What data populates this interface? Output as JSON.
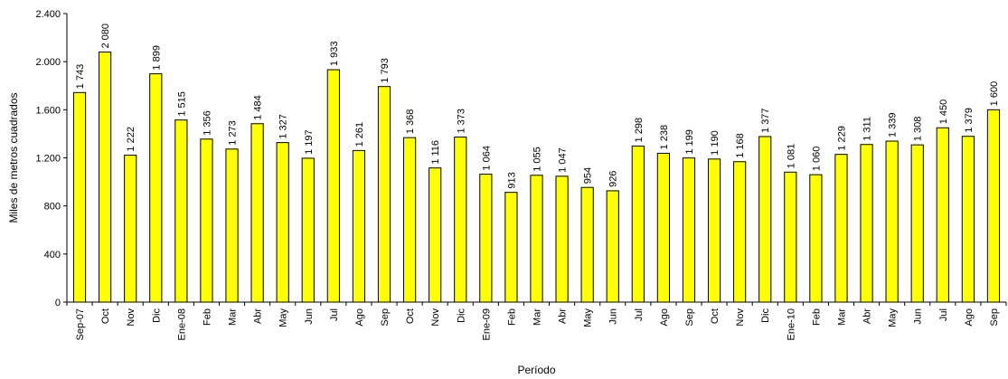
{
  "chart_data": {
    "type": "bar",
    "title": "",
    "xlabel": "Período",
    "ylabel": "Miles de metros cuadrados",
    "ylim": [
      0,
      2400
    ],
    "yticks": [
      0,
      400,
      800,
      1200,
      1600,
      2000,
      2400
    ],
    "ytick_labels": [
      "0",
      "400",
      "800",
      "1.200",
      "1.600",
      "2.000",
      "2.400"
    ],
    "grid": false,
    "legend": "none",
    "bar_color": "#ffff00",
    "bar_edge_color": "#000000",
    "categories": [
      "Sep-07",
      "Oct",
      "Nov",
      "Dic",
      "Ene-08",
      "Feb",
      "Mar",
      "Abr",
      "May",
      "Jun",
      "Jul",
      "Ago",
      "Sep",
      "Oct",
      "Nov",
      "Dic",
      "Ene-09",
      "Feb",
      "Mar",
      "Abr",
      "May",
      "Jun",
      "Jul",
      "Ago",
      "Sep",
      "Oct",
      "Nov",
      "Dic",
      "Ene-10",
      "Feb",
      "Mar",
      "Abr",
      "May",
      "Jun",
      "Jul",
      "Ago",
      "Sep"
    ],
    "values": [
      1743,
      2080,
      1222,
      1899,
      1515,
      1356,
      1273,
      1484,
      1327,
      1197,
      1933,
      1261,
      1793,
      1368,
      1116,
      1373,
      1064,
      913,
      1055,
      1047,
      954,
      926,
      1298,
      1238,
      1199,
      1190,
      1168,
      1377,
      1081,
      1060,
      1229,
      1311,
      1339,
      1308,
      1450,
      1379,
      1600
    ],
    "data_labels": [
      "1 743",
      "2 080",
      "1 222",
      "1 899",
      "1 515",
      "1 356",
      "1 273",
      "1 484",
      "1 327",
      "1 197",
      "1 933",
      "1 261",
      "1 793",
      "1 368",
      "1 116",
      "1 373",
      "1 064",
      "913",
      "1 055",
      "1 047",
      "954",
      "926",
      "1 298",
      "1 238",
      "1 199",
      "1 190",
      "1 168",
      "1 377",
      "1 081",
      "1 060",
      "1 229",
      "1 311",
      "1 339",
      "1 308",
      "1 450",
      "1 379",
      "1 600"
    ]
  }
}
